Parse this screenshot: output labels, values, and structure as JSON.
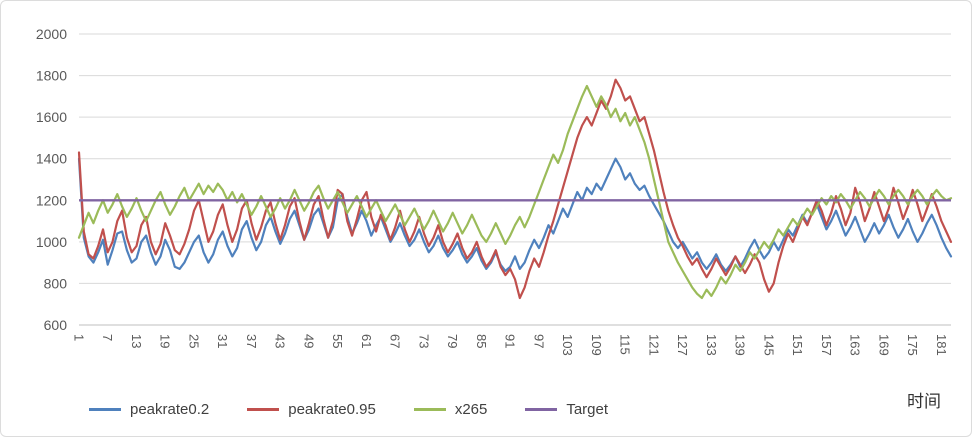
{
  "xaxis": {
    "title": "时间"
  },
  "chart_data": {
    "type": "line",
    "title": "",
    "xlabel": "时间",
    "ylabel": "",
    "grid": true,
    "legend_position": "bottom",
    "x_start": 1,
    "x_end": 183,
    "x_tick_labels": [
      "1",
      "7",
      "13",
      "19",
      "25",
      "31",
      "37",
      "43",
      "49",
      "55",
      "61",
      "67",
      "73",
      "79",
      "85",
      "91",
      "97",
      "103",
      "109",
      "115",
      "121",
      "127",
      "133",
      "139",
      "145",
      "151",
      "157",
      "163",
      "169",
      "175",
      "181"
    ],
    "ylim": [
      600,
      2000
    ],
    "y_ticks": [
      600,
      800,
      1000,
      1200,
      1400,
      1600,
      1800,
      2000
    ],
    "series": [
      {
        "name": "peakrate0.2",
        "color": "#4F81BD",
        "values": [
          1400,
          1020,
          930,
          900,
          950,
          1010,
          890,
          960,
          1040,
          1050,
          960,
          900,
          920,
          1000,
          1030,
          950,
          890,
          930,
          1010,
          960,
          880,
          870,
          900,
          950,
          1000,
          1030,
          950,
          900,
          940,
          1010,
          1050,
          980,
          930,
          970,
          1060,
          1100,
          1020,
          960,
          1000,
          1080,
          1120,
          1050,
          990,
          1040,
          1110,
          1150,
          1080,
          1010,
          1060,
          1130,
          1160,
          1090,
          1020,
          1070,
          1200,
          1230,
          1120,
          1040,
          1090,
          1150,
          1100,
          1030,
          1080,
          1120,
          1060,
          1000,
          1040,
          1090,
          1030,
          980,
          1010,
          1060,
          1000,
          950,
          980,
          1030,
          970,
          930,
          960,
          1000,
          940,
          900,
          930,
          970,
          910,
          870,
          900,
          950,
          890,
          860,
          880,
          930,
          870,
          900,
          960,
          1010,
          970,
          1020,
          1080,
          1040,
          1100,
          1160,
          1120,
          1180,
          1240,
          1200,
          1260,
          1230,
          1280,
          1250,
          1300,
          1350,
          1400,
          1360,
          1300,
          1330,
          1280,
          1250,
          1270,
          1220,
          1180,
          1140,
          1100,
          1050,
          1000,
          970,
          1000,
          960,
          920,
          950,
          900,
          870,
          900,
          940,
          890,
          860,
          890,
          930,
          880,
          920,
          970,
          1010,
          960,
          920,
          950,
          1000,
          960,
          1010,
          1060,
          1030,
          1080,
          1130,
          1090,
          1140,
          1180,
          1120,
          1060,
          1100,
          1150,
          1090,
          1030,
          1070,
          1120,
          1060,
          1000,
          1040,
          1090,
          1040,
          1080,
          1130,
          1070,
          1020,
          1060,
          1110,
          1050,
          1000,
          1040,
          1090,
          1130,
          1080,
          1020,
          970,
          930
        ]
      },
      {
        "name": "peakrate0.95",
        "color": "#C0504D",
        "values": [
          1430,
          1050,
          940,
          920,
          980,
          1060,
          950,
          1000,
          1100,
          1150,
          1020,
          950,
          980,
          1080,
          1120,
          1000,
          940,
          990,
          1090,
          1030,
          960,
          940,
          990,
          1060,
          1150,
          1200,
          1100,
          1000,
          1050,
          1130,
          1180,
          1080,
          1000,
          1060,
          1160,
          1200,
          1090,
          1010,
          1070,
          1150,
          1190,
          1090,
          1010,
          1080,
          1170,
          1210,
          1100,
          1010,
          1090,
          1180,
          1220,
          1110,
          1020,
          1100,
          1250,
          1230,
          1100,
          1030,
          1110,
          1200,
          1240,
          1120,
          1050,
          1130,
          1080,
          1010,
          1070,
          1150,
          1060,
          1000,
          1050,
          1120,
          1040,
          980,
          1020,
          1080,
          1000,
          950,
          990,
          1040,
          970,
          920,
          950,
          1000,
          930,
          880,
          910,
          960,
          880,
          840,
          870,
          820,
          730,
          780,
          860,
          920,
          880,
          950,
          1030,
          1100,
          1180,
          1260,
          1340,
          1420,
          1500,
          1560,
          1600,
          1560,
          1620,
          1680,
          1640,
          1700,
          1780,
          1740,
          1680,
          1700,
          1640,
          1580,
          1600,
          1520,
          1440,
          1340,
          1240,
          1150,
          1080,
          1020,
          980,
          930,
          890,
          920,
          870,
          830,
          870,
          920,
          880,
          840,
          880,
          930,
          890,
          850,
          890,
          940,
          900,
          820,
          760,
          800,
          900,
          980,
          1040,
          1000,
          1060,
          1120,
          1080,
          1140,
          1200,
          1150,
          1080,
          1140,
          1220,
          1160,
          1080,
          1140,
          1260,
          1190,
          1100,
          1160,
          1240,
          1170,
          1100,
          1160,
          1260,
          1190,
          1110,
          1170,
          1250,
          1180,
          1100,
          1160,
          1230,
          1170,
          1100,
          1050,
          1000
        ]
      },
      {
        "name": "x265",
        "color": "#9BBB59",
        "values": [
          1020,
          1080,
          1140,
          1090,
          1150,
          1200,
          1140,
          1180,
          1230,
          1170,
          1120,
          1160,
          1210,
          1150,
          1100,
          1150,
          1200,
          1240,
          1180,
          1130,
          1170,
          1220,
          1260,
          1200,
          1240,
          1280,
          1230,
          1270,
          1240,
          1280,
          1250,
          1200,
          1240,
          1190,
          1230,
          1180,
          1130,
          1170,
          1220,
          1170,
          1120,
          1160,
          1210,
          1160,
          1200,
          1250,
          1200,
          1150,
          1190,
          1240,
          1270,
          1210,
          1160,
          1200,
          1240,
          1190,
          1140,
          1180,
          1220,
          1170,
          1120,
          1160,
          1200,
          1150,
          1100,
          1140,
          1180,
          1130,
          1080,
          1120,
          1160,
          1110,
          1060,
          1100,
          1150,
          1100,
          1050,
          1090,
          1140,
          1090,
          1040,
          1080,
          1130,
          1080,
          1030,
          1000,
          1040,
          1090,
          1040,
          990,
          1030,
          1080,
          1120,
          1070,
          1120,
          1180,
          1240,
          1300,
          1360,
          1420,
          1380,
          1440,
          1520,
          1580,
          1640,
          1700,
          1750,
          1700,
          1650,
          1700,
          1660,
          1600,
          1640,
          1580,
          1620,
          1560,
          1600,
          1540,
          1480,
          1400,
          1300,
          1200,
          1100,
          1000,
          950,
          900,
          860,
          820,
          780,
          750,
          730,
          770,
          740,
          780,
          830,
          800,
          840,
          890,
          860,
          900,
          950,
          920,
          960,
          1000,
          970,
          1010,
          1060,
          1030,
          1070,
          1110,
          1080,
          1120,
          1160,
          1130,
          1170,
          1210,
          1180,
          1220,
          1190,
          1230,
          1200,
          1160,
          1200,
          1240,
          1210,
          1170,
          1210,
          1250,
          1220,
          1180,
          1220,
          1250,
          1220,
          1180,
          1220,
          1250,
          1220,
          1180,
          1220,
          1250,
          1220,
          1200,
          1210
        ]
      },
      {
        "name": "Target",
        "color": "#8064A2",
        "constant": 1200
      }
    ]
  }
}
